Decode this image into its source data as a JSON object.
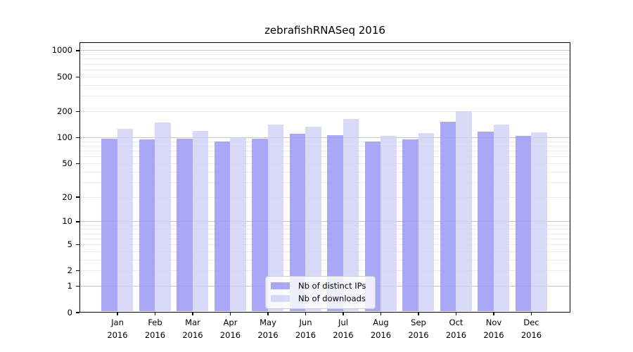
{
  "chart_data": {
    "type": "bar",
    "title": "zebrafishRNASeq 2016",
    "categories": [
      "Jan 2016",
      "Feb 2016",
      "Mar 2016",
      "Apr 2016",
      "May 2016",
      "Jun 2016",
      "Jul 2016",
      "Aug 2016",
      "Sep 2016",
      "Oct 2016",
      "Nov 2016",
      "Dec 2016"
    ],
    "series": [
      {
        "name": "Nb of distinct IPs",
        "color": "rgba(155,155,246,0.87)",
        "values": [
          97,
          94,
          97,
          89,
          97,
          110,
          106,
          90,
          94,
          150,
          116,
          103
        ]
      },
      {
        "name": "Nb of downloads",
        "color": "rgba(208,208,246,0.80)",
        "values": [
          125,
          148,
          118,
          100,
          140,
          132,
          163,
          104,
          111,
          200,
          141,
          115
        ]
      }
    ],
    "xlabel": "",
    "ylabel": "",
    "yscale": "log1p",
    "yticks": [
      0,
      1,
      2,
      5,
      10,
      20,
      50,
      100,
      200,
      500,
      1000
    ],
    "ylim": [
      0,
      1250
    ],
    "grid": {
      "major_values": [
        1,
        10,
        100,
        1000
      ],
      "major_color": "#c6c6c6",
      "minor_color": "#eaeaea"
    },
    "legend": {
      "position": "lower center inside"
    },
    "axis_color": "#000000"
  }
}
